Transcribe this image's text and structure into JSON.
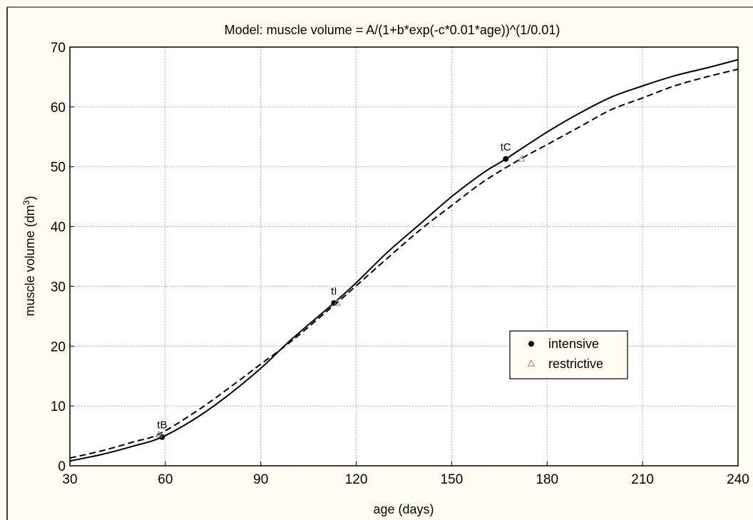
{
  "chart_data": {
    "type": "line",
    "title": "Model: muscle volume = A/(1+b*exp(-c*0.01*age))^(1/0.01)",
    "xlabel": "age (days)",
    "ylabel": "muscle volume (dm",
    "ylabel_sup": "3",
    "ylabel_end": ")",
    "xlim": [
      30,
      240
    ],
    "ylim": [
      0,
      70
    ],
    "xticks": [
      30,
      60,
      90,
      120,
      150,
      180,
      210,
      240
    ],
    "yticks": [
      0,
      10,
      20,
      30,
      40,
      50,
      60,
      70
    ],
    "grid": true,
    "legend_position": "lower-right",
    "series": [
      {
        "name": "intensive",
        "style": "solid",
        "x": [
          30,
          40,
          50,
          59,
          70,
          80,
          90,
          100,
          113,
          120,
          130,
          140,
          150,
          160,
          167,
          180,
          190,
          200,
          210,
          220,
          230,
          240
        ],
        "y": [
          0.8,
          1.9,
          3.3,
          4.8,
          8.1,
          11.9,
          16.3,
          21.3,
          27.2,
          30.6,
          35.8,
          40.4,
          45.0,
          49.0,
          51.3,
          55.8,
          58.9,
          61.6,
          63.5,
          65.2,
          66.5,
          67.9
        ]
      },
      {
        "name": "restrictive",
        "style": "dashed",
        "x": [
          30,
          40,
          50,
          58,
          70,
          80,
          90,
          100,
          114,
          120,
          130,
          140,
          150,
          160,
          172,
          180,
          190,
          200,
          210,
          220,
          230,
          240
        ],
        "y": [
          1.3,
          2.5,
          4.0,
          5.3,
          9.2,
          13.0,
          17.0,
          21.0,
          27.3,
          30.1,
          34.8,
          39.4,
          43.5,
          47.5,
          51.4,
          53.7,
          56.6,
          59.5,
          61.5,
          63.5,
          65.0,
          66.3
        ]
      }
    ],
    "points": [
      {
        "label": "tB",
        "series": "intensive",
        "x": 59,
        "y": 4.8
      },
      {
        "label": "tI",
        "series": "intensive",
        "x": 113,
        "y": 27.2
      },
      {
        "label": "tC",
        "series": "intensive",
        "x": 167,
        "y": 51.3
      },
      {
        "series": "restrictive",
        "x": 58,
        "y": 5.3
      },
      {
        "series": "restrictive",
        "x": 114,
        "y": 27.3
      },
      {
        "series": "restrictive",
        "x": 172,
        "y": 51.4
      }
    ],
    "colors": {
      "line": "#000000",
      "grid": "#aaaaaa",
      "background": "#fffdf2",
      "plot_bg": "#ffffff",
      "restrictive_marker": "#888888"
    }
  }
}
